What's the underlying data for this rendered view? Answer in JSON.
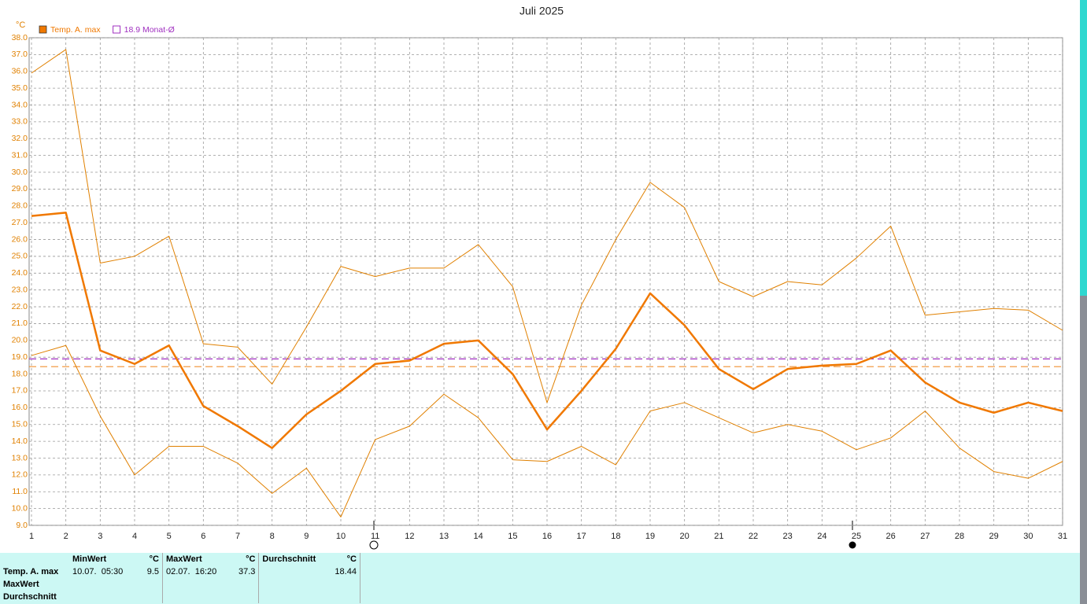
{
  "chart_data": {
    "type": "line",
    "title": "Juli 2025",
    "y_unit": "°C",
    "x": [
      1,
      2,
      3,
      4,
      5,
      6,
      7,
      8,
      9,
      10,
      11,
      12,
      13,
      14,
      15,
      16,
      17,
      18,
      19,
      20,
      21,
      22,
      23,
      24,
      25,
      26,
      27,
      28,
      29,
      30,
      31
    ],
    "xlim": [
      1,
      31
    ],
    "xticks": [
      1,
      2,
      3,
      4,
      5,
      6,
      7,
      8,
      9,
      10,
      11,
      12,
      13,
      14,
      15,
      16,
      17,
      18,
      19,
      20,
      21,
      22,
      23,
      24,
      25,
      26,
      27,
      28,
      29,
      30,
      31
    ],
    "ylim": [
      9,
      38
    ],
    "yticks": [
      {
        "value": 9,
        "label": "9.0"
      },
      {
        "value": 10,
        "label": "10.0"
      },
      {
        "value": 11,
        "label": "11.0"
      },
      {
        "value": 12,
        "label": "12.0"
      },
      {
        "value": 13,
        "label": "13.0"
      },
      {
        "value": 14,
        "label": "14.0"
      },
      {
        "value": 15,
        "label": "15.0"
      },
      {
        "value": 16,
        "label": "16.0"
      },
      {
        "value": 17,
        "label": "17.0"
      },
      {
        "value": 18,
        "label": "18.0"
      },
      {
        "value": 19,
        "label": "19.0"
      },
      {
        "value": 20,
        "label": "20.0"
      },
      {
        "value": 21,
        "label": "21.0"
      },
      {
        "value": 22,
        "label": "22.0"
      },
      {
        "value": 23,
        "label": "23.0"
      },
      {
        "value": 24,
        "label": "24.0"
      },
      {
        "value": 25,
        "label": "25.0"
      },
      {
        "value": 26,
        "label": "26.0"
      },
      {
        "value": 27,
        "label": "27.0"
      },
      {
        "value": 28,
        "label": "28.0"
      },
      {
        "value": 29,
        "label": "29.0"
      },
      {
        "value": 30,
        "label": "30.0"
      },
      {
        "value": 31,
        "label": "31.0"
      },
      {
        "value": 32,
        "label": "32.0"
      },
      {
        "value": 33,
        "label": "33.0"
      },
      {
        "value": 34,
        "label": "34.0"
      },
      {
        "value": 35,
        "label": "35.0"
      },
      {
        "value": 36,
        "label": "36.0"
      },
      {
        "value": 37,
        "label": "37.0"
      },
      {
        "value": 38,
        "label": "38.0"
      }
    ],
    "grid": true,
    "series": [
      {
        "color": "#e08000",
        "width": 1,
        "values": [
          35.9,
          37.3,
          24.6,
          25.0,
          26.2,
          19.8,
          19.6,
          17.4,
          20.8,
          24.4,
          23.8,
          24.3,
          24.3,
          25.7,
          23.2,
          16.3,
          22.1,
          26.0,
          29.4,
          27.9,
          23.5,
          22.6,
          23.5,
          23.3,
          24.9,
          26.8,
          21.5,
          21.7,
          21.9,
          21.8,
          20.6
        ]
      },
      {
        "name": "Temp. A. max",
        "color": "#f07800",
        "width": 2.5,
        "values": [
          27.4,
          27.6,
          19.4,
          18.6,
          19.7,
          16.1,
          14.9,
          13.6,
          15.6,
          17.0,
          18.6,
          18.8,
          19.8,
          20.0,
          18.0,
          14.7,
          17.0,
          19.5,
          22.8,
          20.9,
          18.3,
          17.1,
          18.3,
          18.5,
          18.6,
          19.4,
          17.5,
          16.3,
          15.7,
          16.3,
          15.8
        ]
      },
      {
        "color": "#e08000",
        "width": 1,
        "values": [
          19.1,
          19.7,
          15.5,
          12.0,
          13.7,
          13.7,
          12.7,
          10.9,
          12.4,
          9.5,
          14.1,
          14.9,
          16.8,
          15.4,
          12.9,
          12.8,
          13.7,
          12.6,
          15.8,
          16.3,
          15.4,
          14.5,
          15.0,
          14.6,
          13.5,
          14.2,
          15.8,
          13.6,
          12.2,
          11.8,
          12.8
        ]
      }
    ],
    "reference_lines": [
      {
        "value": 18.9,
        "label": "18.9 Monat-Ø",
        "color": "#a030c0"
      },
      {
        "value": 18.44,
        "color": "#f09030"
      }
    ]
  },
  "stats_table": {
    "header": [
      "MinWert",
      "°C",
      "MaxWert",
      "°C",
      "Durchschnitt",
      "°C"
    ],
    "rows": [
      [
        "Temp. A. max",
        "10.07.  05:30",
        "9.5",
        "02.07.  16:20",
        "37.3",
        "18.44"
      ],
      [
        "MaxWert"
      ],
      [
        "Durchschnitt"
      ]
    ]
  }
}
